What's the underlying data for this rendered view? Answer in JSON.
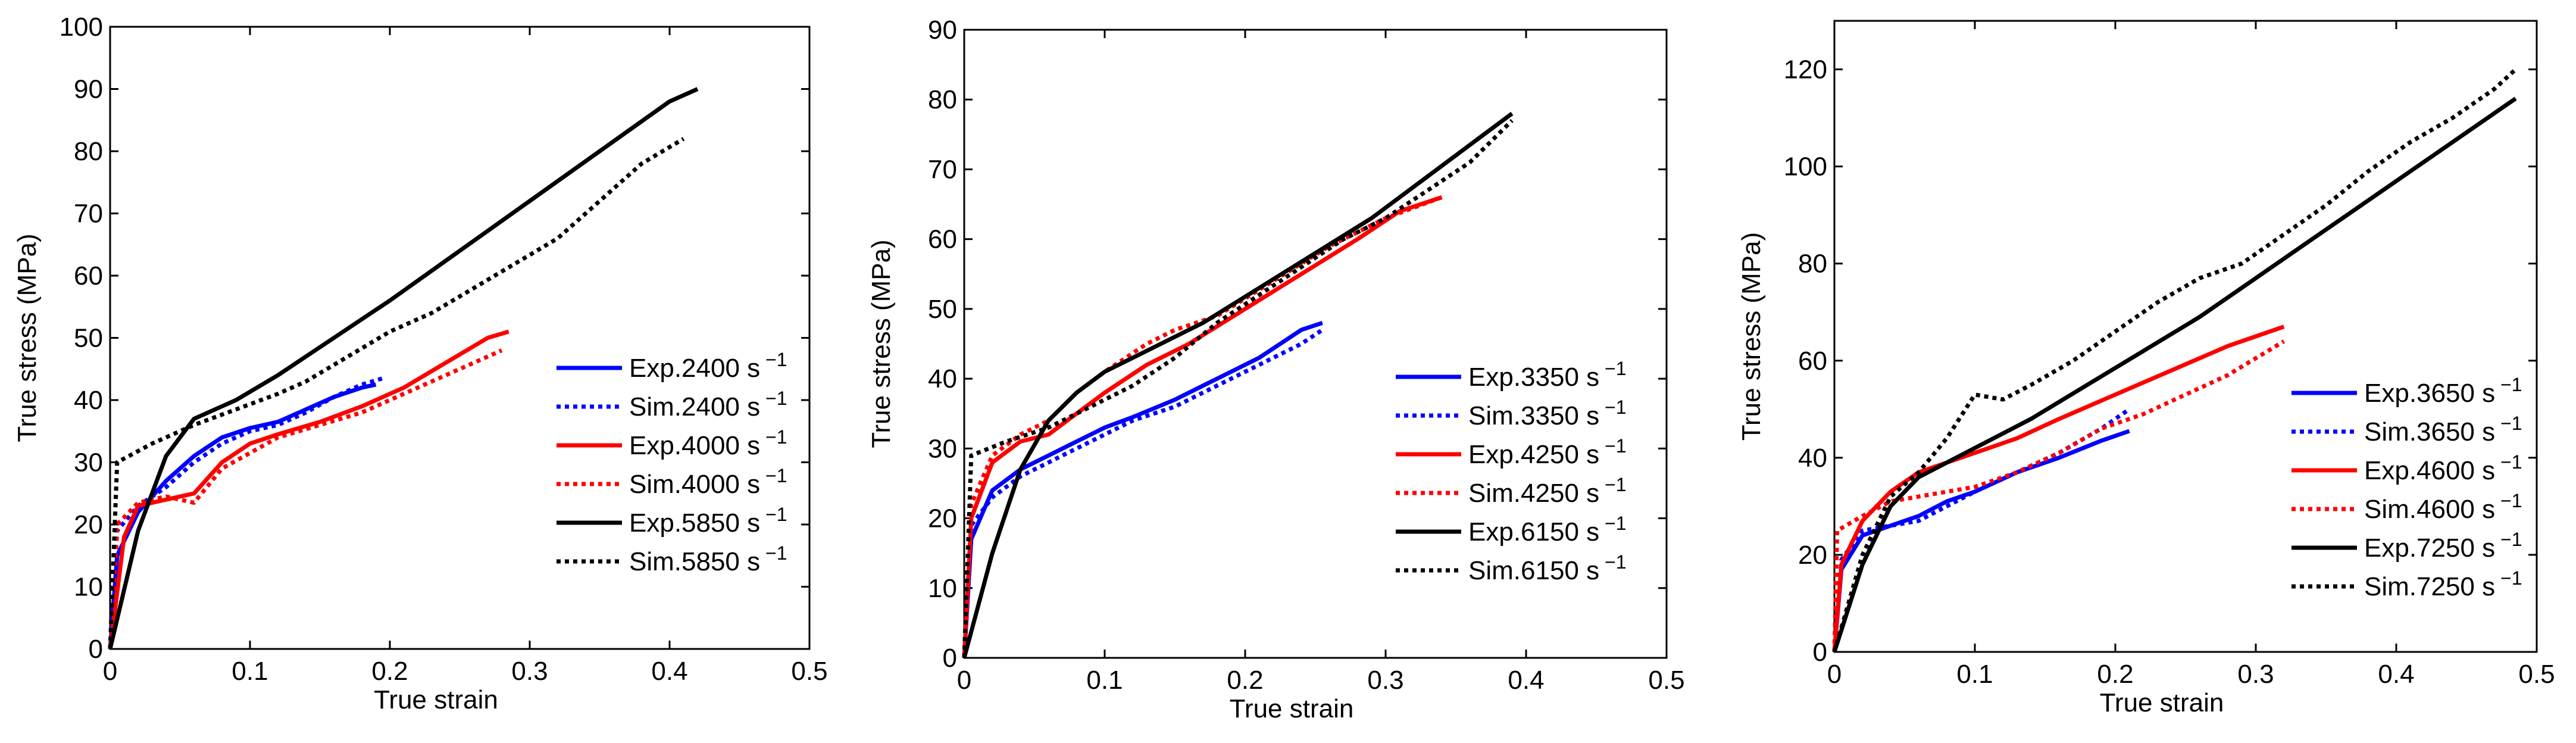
{
  "chart_data": [
    {
      "type": "line",
      "xlabel": "True strain",
      "ylabel": "True stress (MPa)",
      "xlim": [
        0,
        0.5
      ],
      "ylim": [
        0,
        100
      ],
      "xticks": [
        "0",
        "0.1",
        "0.2",
        "0.3",
        "0.4",
        "0.5"
      ],
      "yticks": [
        "0",
        "10",
        "20",
        "30",
        "40",
        "50",
        "60",
        "70",
        "80",
        "90",
        "100"
      ],
      "legend_position": "lower-right",
      "series": [
        {
          "name": "Exp.2400",
          "unit": "s",
          "exp": "−1",
          "color": "#0000ff",
          "style": "solid",
          "x": [
            0,
            0.005,
            0.02,
            0.04,
            0.06,
            0.08,
            0.1,
            0.12,
            0.14,
            0.16,
            0.18,
            0.19
          ],
          "y": [
            0,
            15,
            22,
            27,
            31,
            34,
            35.5,
            36.5,
            38.5,
            40.5,
            42,
            42.5
          ]
        },
        {
          "name": "Sim.2400",
          "unit": "s",
          "exp": "−1",
          "color": "#0000ff",
          "style": "dotted",
          "x": [
            0,
            0.005,
            0.02,
            0.04,
            0.06,
            0.08,
            0.1,
            0.12,
            0.14,
            0.16,
            0.18,
            0.195
          ],
          "y": [
            0,
            19,
            23,
            26,
            30,
            33,
            35,
            36,
            38,
            40.5,
            42.5,
            43.5
          ]
        },
        {
          "name": "Exp.4000",
          "unit": "s",
          "exp": "−1",
          "color": "#ff0000",
          "style": "solid",
          "x": [
            0,
            0.01,
            0.02,
            0.04,
            0.06,
            0.08,
            0.1,
            0.12,
            0.15,
            0.18,
            0.21,
            0.24,
            0.27,
            0.285
          ],
          "y": [
            0,
            18,
            23,
            24,
            25,
            30,
            33,
            34.5,
            36.5,
            39,
            42,
            46,
            50,
            51
          ]
        },
        {
          "name": "Sim.4000",
          "unit": "s",
          "exp": "−1",
          "color": "#ff0000",
          "style": "dotted",
          "x": [
            0,
            0.005,
            0.02,
            0.04,
            0.06,
            0.08,
            0.1,
            0.12,
            0.15,
            0.18,
            0.21,
            0.24,
            0.27,
            0.28
          ],
          "y": [
            0,
            20,
            23.5,
            24.5,
            23.5,
            29,
            31.5,
            34,
            36,
            38,
            41,
            44,
            47,
            48
          ]
        },
        {
          "name": "Exp.5850",
          "unit": "s",
          "exp": "−1",
          "color": "#000000",
          "style": "solid",
          "x": [
            0,
            0.02,
            0.04,
            0.06,
            0.09,
            0.12,
            0.16,
            0.2,
            0.25,
            0.3,
            0.35,
            0.4,
            0.42
          ],
          "y": [
            0,
            19,
            31,
            37,
            40,
            44,
            50,
            56,
            64,
            72,
            80,
            88,
            90
          ]
        },
        {
          "name": "Sim.5850",
          "unit": "s",
          "exp": "−1",
          "color": "#000000",
          "style": "dotted",
          "x": [
            0,
            0.005,
            0.03,
            0.06,
            0.09,
            0.12,
            0.14,
            0.17,
            0.2,
            0.23,
            0.26,
            0.29,
            0.32,
            0.35,
            0.38,
            0.41
          ],
          "y": [
            0,
            30,
            33,
            36,
            38.5,
            41,
            43,
            47,
            51,
            54,
            58,
            62,
            66,
            72,
            78,
            82
          ]
        }
      ]
    },
    {
      "type": "line",
      "xlabel": "True strain",
      "ylabel": "True stress (MPa)",
      "xlim": [
        0,
        0.5
      ],
      "ylim": [
        0,
        90
      ],
      "xticks": [
        "0",
        "0.1",
        "0.2",
        "0.3",
        "0.4",
        "0.5"
      ],
      "yticks": [
        "0",
        "10",
        "20",
        "30",
        "40",
        "50",
        "60",
        "70",
        "80",
        "90"
      ],
      "legend_position": "lower-right",
      "series": [
        {
          "name": "Exp.3350",
          "unit": "s",
          "exp": "−1",
          "color": "#0000ff",
          "style": "solid",
          "x": [
            0,
            0.005,
            0.02,
            0.04,
            0.06,
            0.08,
            0.1,
            0.12,
            0.15,
            0.18,
            0.21,
            0.24,
            0.255
          ],
          "y": [
            0,
            17,
            24,
            27,
            29,
            31,
            33,
            34.5,
            37,
            40,
            43,
            47,
            48
          ]
        },
        {
          "name": "Sim.3350",
          "unit": "s",
          "exp": "−1",
          "color": "#0000ff",
          "style": "dotted",
          "x": [
            0,
            0.005,
            0.02,
            0.04,
            0.06,
            0.08,
            0.1,
            0.12,
            0.15,
            0.18,
            0.21,
            0.24,
            0.255
          ],
          "y": [
            0,
            19,
            23,
            26,
            28,
            30,
            32,
            34,
            36,
            39,
            42,
            45,
            47
          ]
        },
        {
          "name": "Exp.4250",
          "unit": "s",
          "exp": "−1",
          "color": "#ff0000",
          "style": "solid",
          "x": [
            0,
            0.005,
            0.02,
            0.04,
            0.06,
            0.08,
            0.1,
            0.13,
            0.16,
            0.2,
            0.24,
            0.28,
            0.31,
            0.34
          ],
          "y": [
            0,
            20,
            28,
            31,
            32,
            35,
            38,
            42,
            45,
            50,
            55,
            60,
            64,
            66
          ]
        },
        {
          "name": "Sim.4250",
          "unit": "s",
          "exp": "−1",
          "color": "#ff0000",
          "style": "dotted",
          "x": [
            0,
            0.005,
            0.02,
            0.04,
            0.06,
            0.08,
            0.1,
            0.13,
            0.15,
            0.18,
            0.22,
            0.26,
            0.3,
            0.34
          ],
          "y": [
            0,
            22,
            29,
            32,
            34,
            38,
            41,
            45,
            47,
            49,
            54,
            59,
            63,
            66
          ]
        },
        {
          "name": "Exp.6150",
          "unit": "s",
          "exp": "−1",
          "color": "#000000",
          "style": "solid",
          "x": [
            0,
            0.02,
            0.04,
            0.06,
            0.08,
            0.1,
            0.13,
            0.17,
            0.21,
            0.25,
            0.29,
            0.33,
            0.37,
            0.39
          ],
          "y": [
            0,
            15,
            27,
            34,
            38,
            41,
            44,
            48,
            53,
            58,
            63,
            69,
            75,
            78
          ]
        },
        {
          "name": "Sim.6150",
          "unit": "s",
          "exp": "−1",
          "color": "#000000",
          "style": "dotted",
          "x": [
            0,
            0.005,
            0.03,
            0.06,
            0.09,
            0.12,
            0.15,
            0.18,
            0.21,
            0.24,
            0.27,
            0.3,
            0.33,
            0.36,
            0.39
          ],
          "y": [
            0,
            29,
            31,
            33,
            36,
            39,
            43,
            48,
            52,
            56,
            60,
            63,
            67,
            71,
            77
          ]
        }
      ]
    },
    {
      "type": "line",
      "xlabel": "True strain",
      "ylabel": "True stress (MPa)",
      "xlim": [
        0,
        0.5
      ],
      "ylim": [
        0,
        130
      ],
      "xticks": [
        "0",
        "0.1",
        "0.2",
        "0.3",
        "0.4",
        "0.5"
      ],
      "yticks": [
        "0",
        "20",
        "40",
        "60",
        "80",
        "100",
        "120"
      ],
      "legend_position": "lower-right",
      "series": [
        {
          "name": "Exp.3650",
          "unit": "s",
          "exp": "−1",
          "color": "#0000ff",
          "style": "solid",
          "x": [
            0,
            0.005,
            0.02,
            0.04,
            0.06,
            0.08,
            0.1,
            0.13,
            0.16,
            0.19,
            0.21
          ],
          "y": [
            0,
            17,
            24,
            26,
            28,
            31,
            33,
            37,
            40,
            43.5,
            45.5
          ]
        },
        {
          "name": "Sim.3650",
          "unit": "s",
          "exp": "−1",
          "color": "#0000ff",
          "style": "dotted",
          "x": [
            0,
            0.005,
            0.02,
            0.04,
            0.06,
            0.08,
            0.1,
            0.13,
            0.16,
            0.19,
            0.21
          ],
          "y": [
            0,
            19,
            25,
            26,
            27,
            30,
            33,
            37,
            41,
            46,
            50
          ]
        },
        {
          "name": "Exp.4600",
          "unit": "s",
          "exp": "−1",
          "color": "#ff0000",
          "style": "solid",
          "x": [
            0,
            0.005,
            0.02,
            0.04,
            0.06,
            0.08,
            0.1,
            0.13,
            0.16,
            0.2,
            0.24,
            0.28,
            0.32
          ],
          "y": [
            0,
            18,
            27,
            33,
            37,
            39,
            41,
            44,
            48,
            53,
            58,
            63,
            67
          ]
        },
        {
          "name": "Sim.4600",
          "unit": "s",
          "exp": "−1",
          "color": "#ff0000",
          "style": "dotted",
          "x": [
            0,
            0.002,
            0.02,
            0.04,
            0.06,
            0.08,
            0.1,
            0.13,
            0.16,
            0.19,
            0.22,
            0.25,
            0.28,
            0.32
          ],
          "y": [
            0,
            25,
            28,
            31,
            32,
            33,
            34,
            37,
            41,
            46,
            49,
            53,
            57,
            64
          ]
        },
        {
          "name": "Exp.7250",
          "unit": "s",
          "exp": "−1",
          "color": "#000000",
          "style": "solid",
          "x": [
            0,
            0.02,
            0.04,
            0.06,
            0.08,
            0.1,
            0.14,
            0.18,
            0.22,
            0.26,
            0.3,
            0.34,
            0.38,
            0.42,
            0.46,
            0.485
          ],
          "y": [
            0,
            18,
            30,
            36,
            39,
            42,
            48,
            55,
            62,
            69,
            77,
            85,
            93,
            101,
            109,
            114
          ]
        },
        {
          "name": "Sim.7250",
          "unit": "s",
          "exp": "−1",
          "color": "#000000",
          "style": "dotted",
          "x": [
            0,
            0.02,
            0.04,
            0.06,
            0.08,
            0.1,
            0.12,
            0.14,
            0.17,
            0.2,
            0.23,
            0.26,
            0.29,
            0.32,
            0.35,
            0.38,
            0.41,
            0.44,
            0.47,
            0.485
          ],
          "y": [
            0,
            20,
            32,
            37,
            44,
            53,
            52,
            55,
            60,
            66,
            72,
            77,
            80,
            86,
            92,
            99,
            105,
            110,
            116,
            120
          ]
        }
      ]
    }
  ]
}
